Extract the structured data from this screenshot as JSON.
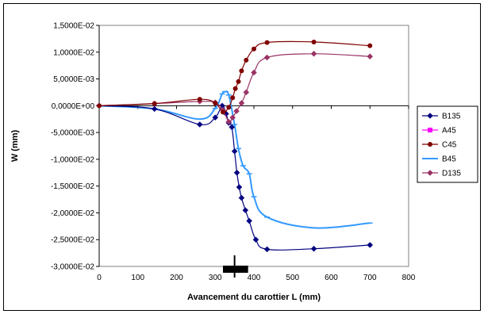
{
  "chart_data": {
    "type": "line",
    "title": "",
    "xlabel": "Avancement du carottier L (mm)",
    "ylabel": "W (mm)",
    "xlim": [
      0,
      800
    ],
    "ylim": [
      -0.03,
      0.015
    ],
    "x_ticks": [
      "0",
      "100",
      "200",
      "300",
      "400",
      "500",
      "600",
      "700",
      "800"
    ],
    "x_tick_values": [
      0,
      100,
      200,
      300,
      400,
      500,
      600,
      700,
      800
    ],
    "y_ticks": [
      "1,5000E-02",
      "1,0000E-02",
      "5,0000E-03",
      "0,0000E+00",
      "-5,0000E-03",
      "-1,0000E-02",
      "-1,5000E-02",
      "-2,0000E-02",
      "-2,5000E-02",
      "-3,0000E-02"
    ],
    "y_tick_values": [
      0.015,
      0.01,
      0.005,
      0,
      -0.005,
      -0.01,
      -0.015,
      -0.02,
      -0.025,
      -0.03
    ],
    "grid": false,
    "legend_position": "right",
    "series": [
      {
        "name": "B135",
        "color": "#000080",
        "marker": "diamond",
        "points": [
          [
            0,
            0
          ],
          [
            143,
            -0.0006
          ],
          [
            260,
            -0.0035
          ],
          [
            300,
            -0.0022
          ],
          [
            318,
            0.0
          ],
          [
            328,
            -0.0015
          ],
          [
            335,
            -0.0032
          ],
          [
            343,
            -0.004
          ],
          [
            350,
            -0.0085
          ],
          [
            356,
            -0.0125
          ],
          [
            362,
            -0.0152
          ],
          [
            368,
            -0.0172
          ],
          [
            378,
            -0.0195
          ],
          [
            388,
            -0.0215
          ],
          [
            405,
            -0.025
          ],
          [
            434,
            -0.0268
          ],
          [
            555,
            -0.0267
          ],
          [
            700,
            -0.026
          ]
        ]
      },
      {
        "name": "A45",
        "color": "#ff00ff",
        "marker": "square",
        "points": []
      },
      {
        "name": "C45",
        "color": "#800000",
        "marker": "circle",
        "points": [
          [
            0,
            0
          ],
          [
            143,
            0.0004
          ],
          [
            260,
            0.0012
          ],
          [
            300,
            0.0005
          ],
          [
            320,
            -0.0012
          ],
          [
            335,
            -0.0003
          ],
          [
            345,
            0.0015
          ],
          [
            352,
            0.0032
          ],
          [
            360,
            0.0045
          ],
          [
            368,
            0.0065
          ],
          [
            380,
            0.0085
          ],
          [
            400,
            0.0106
          ],
          [
            434,
            0.0118
          ],
          [
            555,
            0.0119
          ],
          [
            700,
            0.0112
          ]
        ]
      },
      {
        "name": "B45",
        "color": "#3399ff",
        "marker": "dash",
        "points": [
          [
            0,
            0
          ],
          [
            143,
            -0.0006
          ],
          [
            260,
            -0.0025
          ],
          [
            300,
            -0.0005
          ],
          [
            318,
            0.0022
          ],
          [
            325,
            0.0026
          ],
          [
            335,
            0.002
          ],
          [
            350,
            -0.0035
          ],
          [
            360,
            -0.008
          ],
          [
            372,
            -0.0112
          ],
          [
            388,
            -0.0127
          ],
          [
            400,
            -0.017
          ],
          [
            434,
            -0.0208
          ],
          [
            555,
            -0.0228
          ],
          [
            700,
            -0.0219
          ]
        ]
      },
      {
        "name": "D135",
        "color": "#993366",
        "marker": "diamond",
        "points": [
          [
            0,
            0
          ],
          [
            143,
            0.0004
          ],
          [
            260,
            0.0008
          ],
          [
            300,
            0.0006
          ],
          [
            320,
            -0.0008
          ],
          [
            335,
            -0.003
          ],
          [
            345,
            -0.0022
          ],
          [
            355,
            -0.001
          ],
          [
            368,
            0.0005
          ],
          [
            380,
            0.0025
          ],
          [
            400,
            0.0062
          ],
          [
            434,
            0.009
          ],
          [
            555,
            0.0097
          ],
          [
            700,
            0.0092
          ]
        ]
      }
    ],
    "annotation": {
      "type": "cross-marker",
      "x_range": [
        320,
        385
      ],
      "x_center": 350
    }
  }
}
